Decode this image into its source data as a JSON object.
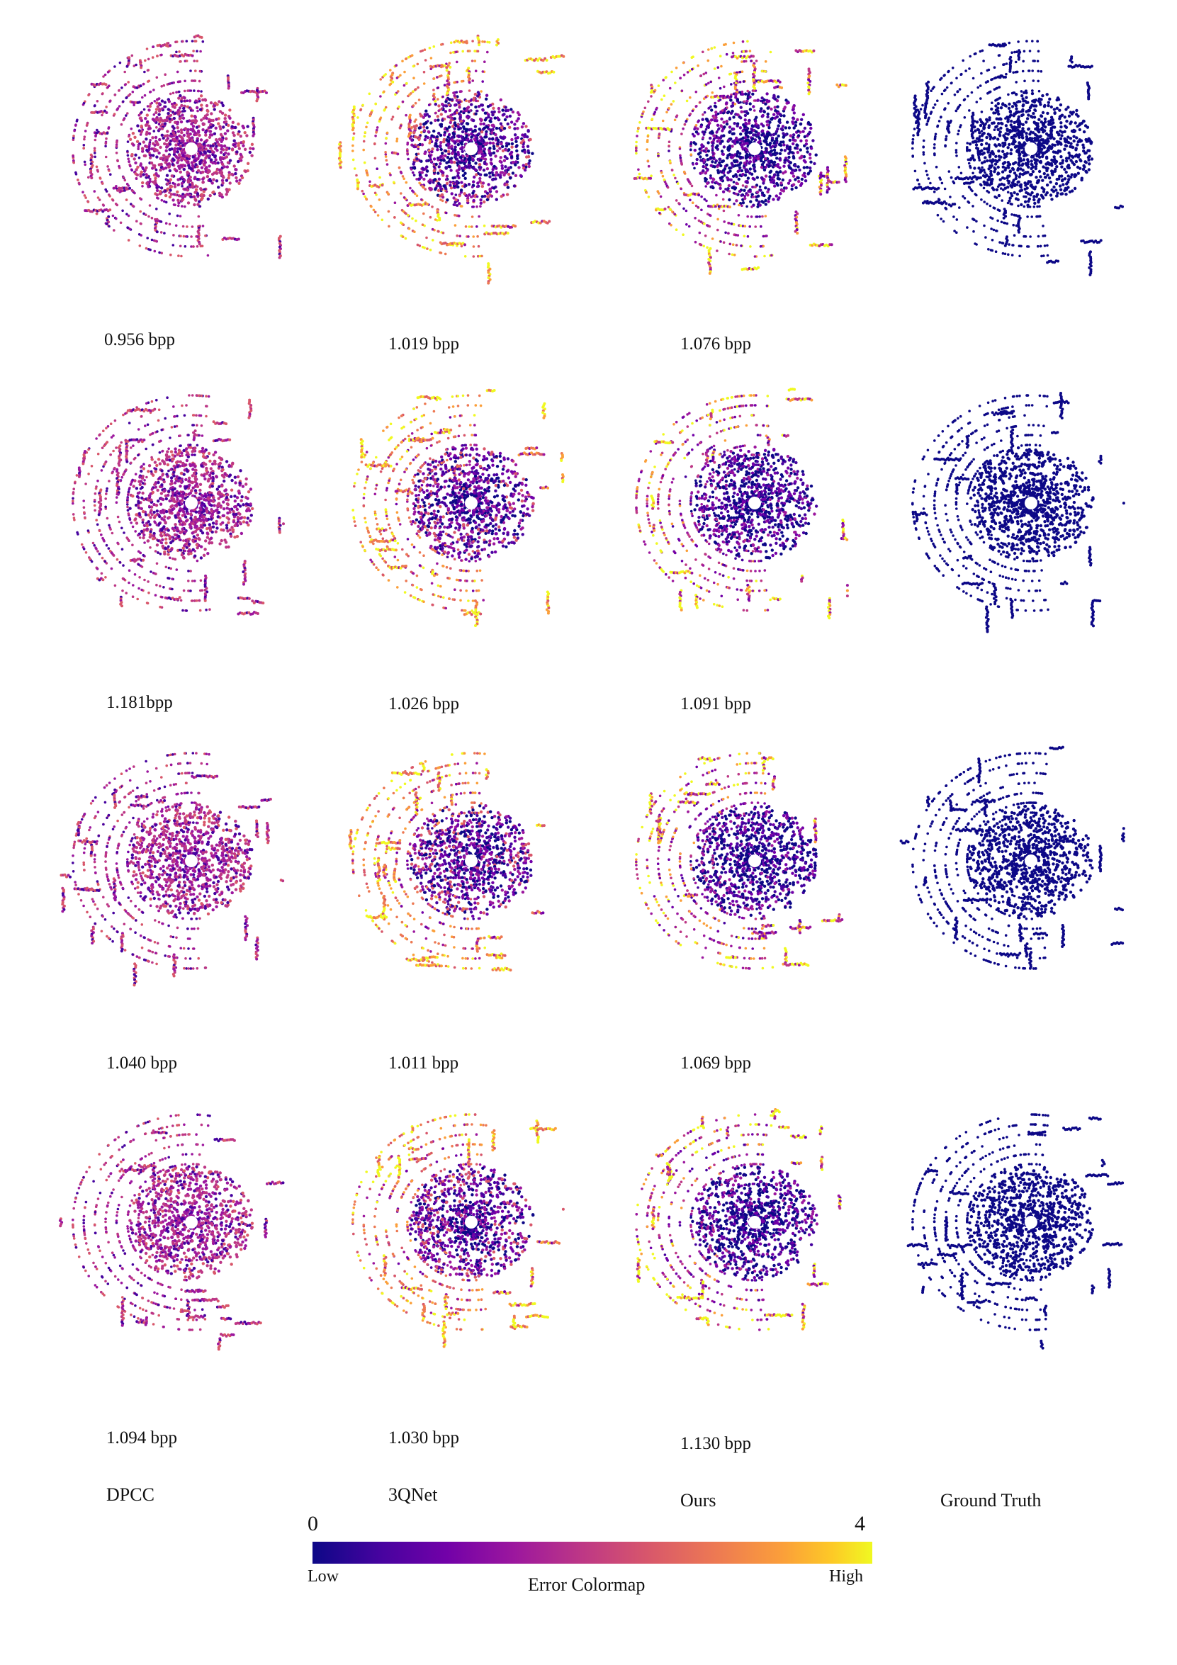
{
  "colors": {
    "low": "#0d0887",
    "mid1": "#46039f",
    "mid2": "#7201a8",
    "mid3": "#9c179e",
    "mid4": "#bd3786",
    "mid5": "#d8576b",
    "mid6": "#ed7953",
    "mid7": "#fb9f3a",
    "high": "#f0f921"
  },
  "rows": [
    {
      "bpp": [
        "0.956 bpp",
        "1.019 bpp",
        "1.076 bpp"
      ]
    },
    {
      "bpp": [
        "1.181bpp",
        "1.026 bpp",
        "1.091 bpp"
      ]
    },
    {
      "bpp": [
        "1.040 bpp",
        "1.011 bpp",
        "1.069 bpp"
      ]
    },
    {
      "bpp": [
        "1.094 bpp",
        "1.030 bpp",
        "1.130 bpp"
      ]
    }
  ],
  "methods": [
    "DPCC",
    "3QNet",
    "Ours",
    "Ground Truth"
  ],
  "colorbar": {
    "min_label": "0",
    "max_label": "4",
    "low_label": "Low",
    "high_label": "High",
    "title": "Error Colormap"
  },
  "panel_style": {
    "DPCC": "purple-heavy with yellow blobs",
    "3QNet": "dark core with orange/yellow fringes",
    "Ours": "dark core with sparse orange",
    "Ground Truth": "uniform dark blue"
  }
}
